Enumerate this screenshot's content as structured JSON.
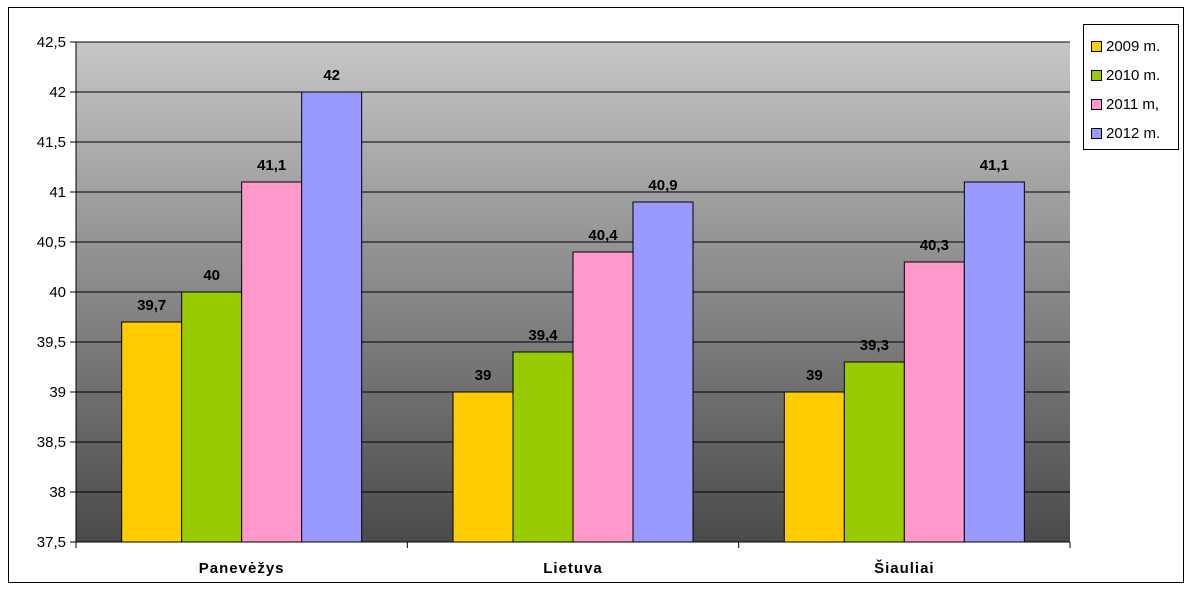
{
  "chart_data": {
    "type": "bar",
    "categories": [
      "Panevėžys",
      "Lietuva",
      "Šiauliai"
    ],
    "series": [
      {
        "name": "2009 m.",
        "color": "#FFCC00",
        "values": [
          39.7,
          39,
          39
        ],
        "labels": [
          "39,7",
          "39",
          "39"
        ]
      },
      {
        "name": "2010 m.",
        "color": "#99CC00",
        "values": [
          40,
          39.4,
          39.3
        ],
        "labels": [
          "40",
          "39,4",
          "39,3"
        ]
      },
      {
        "name": "2011 m,",
        "color": "#FF99CC",
        "values": [
          41.1,
          40.4,
          40.3
        ],
        "labels": [
          "41,1",
          "40,4",
          "40,3"
        ]
      },
      {
        "name": "2012 m.",
        "color": "#9999FF",
        "values": [
          42,
          40.9,
          41.1
        ],
        "labels": [
          "42",
          "40,9",
          "41,1"
        ]
      }
    ],
    "yticks": [
      "37,5",
      "38",
      "38,5",
      "39",
      "39,5",
      "40",
      "40,5",
      "41",
      "41,5",
      "42",
      "42,5"
    ],
    "ylim": [
      37.5,
      42.5
    ],
    "grid": true,
    "legend_position": "right",
    "plot_background": "gradient light gray to dark gray"
  }
}
